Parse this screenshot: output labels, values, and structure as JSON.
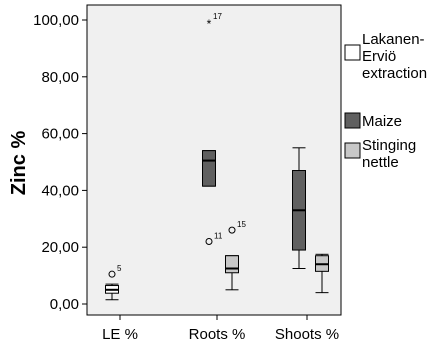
{
  "chart_data": {
    "type": "boxplot",
    "ylabel": "Zinc %",
    "xlabel": "",
    "ylim": [
      0,
      100
    ],
    "yticks": [
      {
        "value": 0,
        "label": "0,00"
      },
      {
        "value": 20,
        "label": "20,00"
      },
      {
        "value": 40,
        "label": "40,00"
      },
      {
        "value": 60,
        "label": "60,00"
      },
      {
        "value": 80,
        "label": "80,00"
      },
      {
        "value": 100,
        "label": "100,00"
      }
    ],
    "categories": [
      "LE %",
      "Roots %",
      "Shoots %"
    ],
    "legend_position": "right",
    "series": [
      {
        "name": "Lakanen-Erviö extraction",
        "name_lines": [
          "Lakanen-",
          "Erviö",
          "extraction"
        ],
        "color": "#ffffff",
        "boxes": [
          {
            "category": "LE %",
            "min": 1.5,
            "q1": 3.8,
            "median": 5.0,
            "q3": 6.5,
            "max": 7.0,
            "outliers": [
              {
                "value": 10.5,
                "label": "5",
                "marker": "circle"
              }
            ]
          }
        ]
      },
      {
        "name": "Maize",
        "name_lines": [
          "Maize"
        ],
        "color": "#606060",
        "boxes": [
          {
            "category": "Roots %",
            "min": 41.5,
            "q1": 41.5,
            "median": 50.5,
            "q3": 54.0,
            "max": 54.0,
            "outliers": [
              {
                "value": 99.0,
                "label": "17",
                "marker": "star"
              },
              {
                "value": 22.0,
                "label": "11",
                "marker": "circle"
              }
            ]
          },
          {
            "category": "Shoots %",
            "min": 12.5,
            "q1": 19.0,
            "median": 33.0,
            "q3": 47.0,
            "max": 55.0,
            "outliers": []
          }
        ]
      },
      {
        "name": "Stinging nettle",
        "name_lines": [
          "Stinging",
          "nettle"
        ],
        "color": "#c8c8c8",
        "boxes": [
          {
            "category": "Roots %",
            "min": 5.0,
            "q1": 11.0,
            "median": 12.5,
            "q3": 17.0,
            "max": 17.0,
            "outliers": [
              {
                "value": 26.0,
                "label": "15",
                "marker": "circle"
              }
            ]
          },
          {
            "category": "Shoots %",
            "min": 4.0,
            "q1": 11.5,
            "median": 14.0,
            "q3": 17.0,
            "max": 17.5,
            "outliers": []
          }
        ]
      }
    ]
  }
}
